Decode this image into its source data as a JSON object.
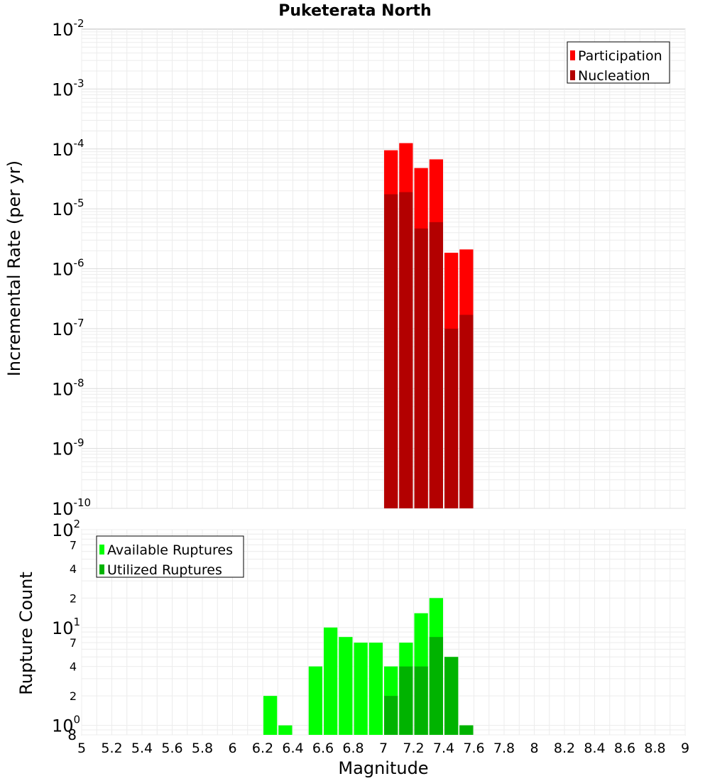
{
  "chart_data": [
    {
      "type": "bar",
      "title": "Puketerata North",
      "xlabel": "Magnitude",
      "ylabel": "Incremental Rate (per yr)",
      "yscale": "log",
      "ylim": [
        1e-10,
        0.01
      ],
      "xlim": [
        5,
        9
      ],
      "bin_width": 0.1,
      "x": [
        7.05,
        7.15,
        7.25,
        7.35,
        7.45,
        7.55
      ],
      "series": [
        {
          "name": "Participation",
          "color": "#ff0000",
          "values": [
            9.5e-05,
            0.000125,
            4.8e-05,
            6.7e-05,
            1.85e-06,
            2.1e-06
          ]
        },
        {
          "name": "Nucleation",
          "color": "#b30000",
          "values": [
            1.75e-05,
            1.9e-05,
            4.7e-06,
            6e-06,
            1e-07,
            1.7e-07
          ]
        }
      ],
      "legend": "top-right",
      "grid": true
    },
    {
      "type": "bar",
      "xlabel": "Magnitude",
      "ylabel": "Rupture Count",
      "yscale": "log",
      "ylim": [
        0.8,
        100
      ],
      "xlim": [
        5,
        9
      ],
      "bin_width": 0.1,
      "x": [
        6.25,
        6.35,
        6.55,
        6.65,
        6.75,
        6.85,
        6.95,
        7.05,
        7.15,
        7.25,
        7.35,
        7.45,
        7.55
      ],
      "series": [
        {
          "name": "Available Ruptures",
          "color": "#00ff00",
          "values": [
            2,
            1,
            4,
            10,
            8,
            7,
            7,
            4,
            7,
            14,
            20,
            5,
            1
          ]
        },
        {
          "name": "Utilized Ruptures",
          "color": "#00b300",
          "values": [
            0,
            0,
            0,
            0,
            0,
            0,
            0,
            2,
            4,
            4,
            8,
            5,
            1
          ]
        }
      ],
      "legend": "top-left",
      "grid": true
    }
  ],
  "top_ticks": [
    {
      "base": "10",
      "exp": "-2"
    },
    {
      "base": "10",
      "exp": "-3"
    },
    {
      "base": "10",
      "exp": "-4"
    },
    {
      "base": "10",
      "exp": "-5"
    },
    {
      "base": "10",
      "exp": "-6"
    },
    {
      "base": "10",
      "exp": "-7"
    },
    {
      "base": "10",
      "exp": "-8"
    },
    {
      "base": "10",
      "exp": "-9"
    },
    {
      "base": "10",
      "exp": "-10"
    }
  ],
  "bottom_ticks": {
    "decades": [
      {
        "value": 100,
        "base": "10",
        "exp": "2"
      },
      {
        "value": 10,
        "base": "10",
        "exp": "1"
      },
      {
        "value": 1,
        "base": "10",
        "exp": "0"
      }
    ],
    "minor": [
      {
        "value": 70,
        "label": "7"
      },
      {
        "value": 40,
        "label": "4"
      },
      {
        "value": 20,
        "label": "2"
      },
      {
        "value": 7,
        "label": "7"
      },
      {
        "value": 4,
        "label": "4"
      },
      {
        "value": 2,
        "label": "2"
      },
      {
        "value": 0.8,
        "label": "8"
      }
    ]
  },
  "x_ticks": [
    "5",
    "5.2",
    "5.4",
    "5.6",
    "5.8",
    "6",
    "6.2",
    "6.4",
    "6.6",
    "6.8",
    "7",
    "7.2",
    "7.4",
    "7.6",
    "7.8",
    "8",
    "8.2",
    "8.4",
    "8.6",
    "8.8",
    "9"
  ]
}
